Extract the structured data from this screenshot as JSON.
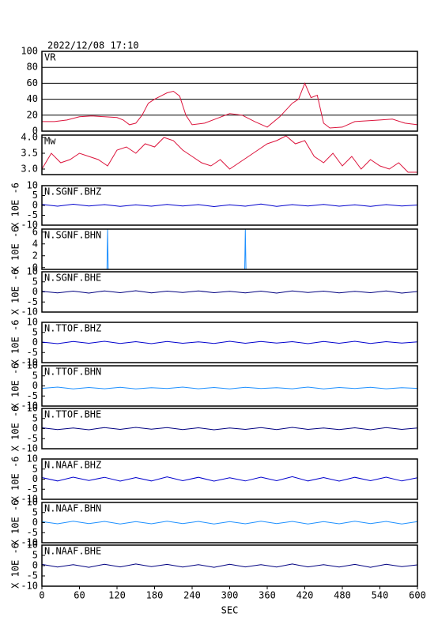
{
  "chart_data": [
    {
      "type": "line",
      "title": "2022/12/08 17:10",
      "label": "VR",
      "color": "#dc143c",
      "grid": true,
      "xlim": [
        0,
        600
      ],
      "ylim": [
        0,
        100
      ],
      "yticks": [
        0,
        20,
        40,
        60,
        80,
        100
      ],
      "x": [
        0,
        20,
        40,
        60,
        80,
        100,
        120,
        130,
        140,
        150,
        160,
        170,
        180,
        190,
        200,
        210,
        220,
        230,
        240,
        260,
        280,
        300,
        320,
        340,
        360,
        380,
        400,
        410,
        420,
        430,
        440,
        450,
        460,
        480,
        500,
        520,
        540,
        560,
        580,
        600
      ],
      "values": [
        12,
        12,
        14,
        18,
        19,
        18,
        17,
        14,
        8,
        10,
        20,
        35,
        40,
        44,
        48,
        50,
        44,
        20,
        8,
        10,
        16,
        22,
        20,
        12,
        5,
        18,
        35,
        40,
        60,
        42,
        45,
        10,
        4,
        5,
        12,
        13,
        14,
        15,
        10,
        8
      ]
    },
    {
      "type": "line",
      "label": "Mw",
      "color": "#dc143c",
      "xlim": [
        0,
        600
      ],
      "ylim": [
        2.825,
        4.075
      ],
      "yticks": [
        {
          "value": 3,
          "label": "3.0"
        },
        3.5,
        {
          "value": 4,
          "label": "4.0"
        }
      ],
      "x": [
        0,
        15,
        30,
        45,
        60,
        75,
        90,
        105,
        120,
        135,
        150,
        165,
        180,
        195,
        210,
        225,
        240,
        255,
        270,
        285,
        300,
        315,
        330,
        345,
        360,
        375,
        390,
        405,
        420,
        435,
        450,
        465,
        480,
        495,
        510,
        525,
        540,
        555,
        570,
        585,
        600
      ],
      "values": [
        3.0,
        3.5,
        3.2,
        3.3,
        3.5,
        3.4,
        3.3,
        3.1,
        3.6,
        3.7,
        3.5,
        3.8,
        3.7,
        4.0,
        3.9,
        3.6,
        3.4,
        3.2,
        3.1,
        3.3,
        3.0,
        3.2,
        3.4,
        3.6,
        3.8,
        3.9,
        4.05,
        3.8,
        3.9,
        3.4,
        3.2,
        3.5,
        3.1,
        3.4,
        3.0,
        3.3,
        3.1,
        3.0,
        3.2,
        2.9,
        2.9
      ]
    },
    {
      "type": "line",
      "label": "N.SGNF.BHZ",
      "ylabel": "X 10E -6",
      "color": "#0000cd",
      "xlim": [
        0,
        600
      ],
      "ylim": [
        -10,
        10
      ],
      "yticks": [
        -10,
        -5,
        0,
        5,
        10
      ],
      "x": [
        0,
        25,
        50,
        75,
        100,
        125,
        150,
        175,
        200,
        225,
        250,
        275,
        300,
        325,
        350,
        375,
        400,
        425,
        450,
        475,
        500,
        525,
        550,
        575,
        600
      ],
      "values": [
        0.5,
        -0.4,
        0.6,
        -0.3,
        0.4,
        -0.5,
        0.3,
        -0.4,
        0.5,
        -0.3,
        0.4,
        -0.6,
        0.3,
        -0.4,
        0.7,
        -0.5,
        0.4,
        -0.3,
        0.5,
        -0.4,
        0.3,
        -0.5,
        0.4,
        -0.3,
        0.2
      ]
    },
    {
      "type": "line",
      "label": "N.SGNF.BHN",
      "ylabel": "X 10E -6",
      "color": "#1e90ff",
      "xlim": [
        0,
        600
      ],
      "ylim": [
        -0.3,
        6.5
      ],
      "yticks": [
        0,
        2,
        4,
        6
      ],
      "x": [
        0,
        104,
        105,
        106,
        324,
        325,
        326,
        600
      ],
      "values": [
        -0.3,
        -0.3,
        6.5,
        -0.3,
        -0.3,
        6.5,
        -0.3,
        -0.3
      ]
    },
    {
      "type": "line",
      "label": "N.SGNF.BHE",
      "ylabel": "X 10E -6",
      "color": "#000080",
      "xlim": [
        0,
        600
      ],
      "ylim": [
        -10,
        10
      ],
      "yticks": [
        -10,
        -5,
        0,
        5,
        10
      ],
      "x": [
        0,
        25,
        50,
        75,
        100,
        125,
        150,
        175,
        200,
        225,
        250,
        275,
        300,
        325,
        350,
        375,
        400,
        425,
        450,
        475,
        500,
        525,
        550,
        575,
        600
      ],
      "values": [
        0.3,
        -0.5,
        0.4,
        -0.6,
        0.5,
        -0.4,
        0.6,
        -0.5,
        0.4,
        -0.3,
        0.5,
        -0.4,
        0.3,
        -0.5,
        0.4,
        -0.6,
        0.5,
        -0.3,
        0.4,
        -0.5,
        0.3,
        -0.4,
        0.5,
        -0.6,
        0.2
      ]
    },
    {
      "type": "line",
      "label": "N.TTOF.BHZ",
      "ylabel": "X 10E -6",
      "color": "#0000cd",
      "xlim": [
        0,
        600
      ],
      "ylim": [
        -10,
        10
      ],
      "yticks": [
        -10,
        -5,
        0,
        5,
        10
      ],
      "x": [
        0,
        25,
        50,
        75,
        100,
        125,
        150,
        175,
        200,
        225,
        250,
        275,
        300,
        325,
        350,
        375,
        400,
        425,
        450,
        475,
        500,
        525,
        550,
        575,
        600
      ],
      "values": [
        0.2,
        -0.6,
        0.5,
        -0.4,
        0.6,
        -0.5,
        0.4,
        -0.6,
        0.5,
        -0.4,
        0.3,
        -0.5,
        0.6,
        -0.4,
        0.5,
        -0.3,
        0.4,
        -0.6,
        0.5,
        -0.4,
        0.6,
        -0.5,
        0.4,
        -0.3,
        0.3
      ]
    },
    {
      "type": "line",
      "label": "N.TTOF.BHN",
      "ylabel": "X 10E -6",
      "color": "#1e90ff",
      "xlim": [
        0,
        600
      ],
      "ylim": [
        -10,
        10
      ],
      "yticks": [
        -10,
        -5,
        0,
        5,
        10
      ],
      "x": [
        0,
        25,
        50,
        75,
        100,
        125,
        150,
        175,
        200,
        225,
        250,
        275,
        300,
        325,
        350,
        375,
        400,
        425,
        450,
        475,
        500,
        525,
        550,
        575,
        600
      ],
      "values": [
        -1.2,
        -0.6,
        -1.5,
        -0.8,
        -1.4,
        -0.7,
        -1.5,
        -0.9,
        -1.3,
        -0.6,
        -1.4,
        -0.8,
        -1.5,
        -0.7,
        -1.3,
        -0.9,
        -1.4,
        -0.6,
        -1.5,
        -0.8,
        -1.3,
        -0.7,
        -1.4,
        -0.9,
        -1.2
      ]
    },
    {
      "type": "line",
      "label": "N.TTOF.BHE",
      "ylabel": "X 10E -6",
      "color": "#000080",
      "xlim": [
        0,
        600
      ],
      "ylim": [
        -10,
        10
      ],
      "yticks": [
        -10,
        -5,
        0,
        5,
        10
      ],
      "x": [
        0,
        25,
        50,
        75,
        100,
        125,
        150,
        175,
        200,
        225,
        250,
        275,
        300,
        325,
        350,
        375,
        400,
        425,
        450,
        475,
        500,
        525,
        550,
        575,
        600
      ],
      "values": [
        0.4,
        -0.5,
        0.3,
        -0.6,
        0.5,
        -0.4,
        0.6,
        -0.3,
        0.5,
        -0.5,
        0.4,
        -0.6,
        0.3,
        -0.4,
        0.5,
        -0.5,
        0.6,
        -0.4,
        0.3,
        -0.5,
        0.4,
        -0.6,
        0.5,
        -0.4,
        0.3
      ]
    },
    {
      "type": "line",
      "label": "N.NAAF.BHZ",
      "ylabel": "X 10E -6",
      "color": "#0000cd",
      "xlim": [
        0,
        600
      ],
      "ylim": [
        -10,
        10
      ],
      "yticks": [
        -10,
        -5,
        0,
        5,
        10
      ],
      "x": [
        0,
        25,
        50,
        75,
        100,
        125,
        150,
        175,
        200,
        225,
        250,
        275,
        300,
        325,
        350,
        375,
        400,
        425,
        450,
        475,
        500,
        525,
        550,
        575,
        600
      ],
      "values": [
        0.8,
        -0.9,
        1.0,
        -0.7,
        0.9,
        -1.0,
        0.8,
        -0.9,
        1.1,
        -0.8,
        0.9,
        -1.0,
        0.7,
        -0.9,
        1.0,
        -0.8,
        1.2,
        -0.9,
        0.8,
        -1.0,
        0.9,
        -0.8,
        1.0,
        -0.9,
        0.7
      ]
    },
    {
      "type": "line",
      "label": "N.NAAF.BHN",
      "ylabel": "X 10E -6",
      "color": "#1e90ff",
      "xlim": [
        0,
        600
      ],
      "ylim": [
        -10,
        10
      ],
      "yticks": [
        -10,
        -5,
        0,
        5,
        10
      ],
      "x": [
        0,
        25,
        50,
        75,
        100,
        125,
        150,
        175,
        200,
        225,
        250,
        275,
        300,
        325,
        350,
        375,
        400,
        425,
        450,
        475,
        500,
        525,
        550,
        575,
        600
      ],
      "values": [
        0.5,
        -0.6,
        0.7,
        -0.5,
        0.6,
        -0.7,
        0.5,
        -0.6,
        0.7,
        -0.5,
        0.6,
        -0.7,
        0.5,
        -0.6,
        0.7,
        -0.5,
        0.6,
        -0.7,
        0.5,
        -0.6,
        0.7,
        -0.5,
        0.6,
        -0.7,
        0.5
      ]
    },
    {
      "type": "line",
      "label": "N.NAAF.BHE",
      "ylabel": "X 10E -6",
      "color": "#000080",
      "xlabel": "SEC",
      "xlim": [
        0,
        600
      ],
      "ylim": [
        -10,
        10
      ],
      "yticks": [
        -10,
        -5,
        0,
        5,
        10
      ],
      "xticks": [
        0,
        60,
        120,
        180,
        240,
        300,
        360,
        420,
        480,
        540,
        600
      ],
      "x": [
        0,
        25,
        50,
        75,
        100,
        125,
        150,
        175,
        200,
        225,
        250,
        275,
        300,
        325,
        350,
        375,
        400,
        425,
        450,
        475,
        500,
        525,
        550,
        575,
        600
      ],
      "values": [
        0.6,
        -0.7,
        0.5,
        -0.8,
        0.7,
        -0.6,
        0.8,
        -0.5,
        0.6,
        -0.7,
        0.5,
        -0.8,
        0.7,
        -0.6,
        0.5,
        -0.7,
        0.8,
        -0.6,
        0.5,
        -0.7,
        0.6,
        -0.8,
        0.7,
        -0.5,
        0.4
      ]
    }
  ]
}
